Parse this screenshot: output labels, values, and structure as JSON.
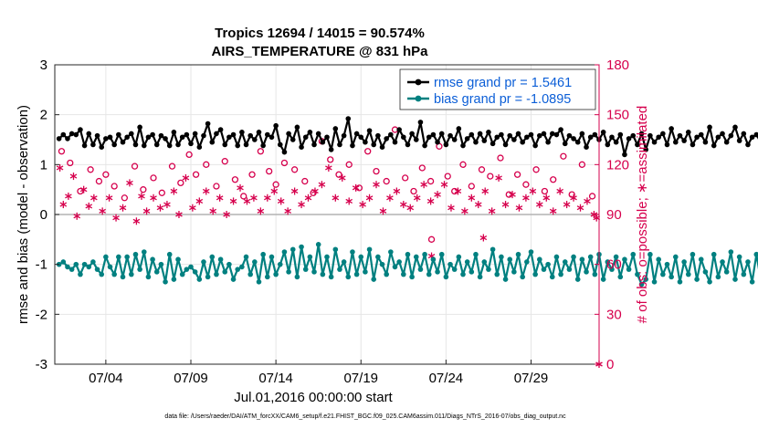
{
  "chart_data": {
    "type": "line",
    "title": "Tropics 12694 / 14015 = 90.574%",
    "subtitle": "AIRS_TEMPERATURE @ 831 hPa",
    "xlabel": "Jul.01,2016 00:00:00 start",
    "ylabel": "rmse and bias (model - observation)",
    "y2label": "# of obs: o=possible; ∗=assimilated",
    "footnote": "data file: /Users/raeder/DAI/ATM_forcXX/CAM6_setup/f.e21.FHIST_BGC.f09_025.CAM6assim.011/Diags_NTrS_2016-07/obs_diag_output.nc",
    "xlim": [
      1,
      33
    ],
    "ylim": [
      -3,
      3
    ],
    "y2lim": [
      0,
      180
    ],
    "grid": true,
    "legend_placement": "top-right",
    "x_ticks": [
      {
        "value": 4,
        "label": "07/04"
      },
      {
        "value": 9,
        "label": "07/09"
      },
      {
        "value": 14,
        "label": "07/14"
      },
      {
        "value": 19,
        "label": "07/19"
      },
      {
        "value": 24,
        "label": "07/24"
      },
      {
        "value": 29,
        "label": "07/29"
      }
    ],
    "y_ticks": [
      -3,
      -2,
      -1,
      0,
      1,
      2,
      3
    ],
    "y2_ticks": [
      0,
      30,
      60,
      90,
      120,
      150,
      180
    ],
    "series": [
      {
        "name": "rmse grand pr = 1.5461",
        "color": "#000000",
        "marker": "filled-circle",
        "axis": "left",
        "x_start": 1.25,
        "x_step": 0.25,
        "values": [
          1.52,
          1.6,
          1.52,
          1.62,
          1.6,
          1.7,
          1.38,
          1.62,
          1.4,
          1.58,
          1.35,
          1.52,
          1.55,
          1.4,
          1.6,
          1.45,
          1.55,
          1.62,
          1.4,
          1.75,
          1.38,
          1.55,
          1.6,
          1.4,
          1.58,
          1.52,
          1.38,
          1.65,
          1.4,
          1.55,
          1.6,
          1.42,
          1.62,
          1.35,
          1.58,
          1.82,
          1.45,
          1.62,
          1.7,
          1.4,
          1.55,
          1.6,
          1.38,
          1.65,
          1.4,
          1.58,
          1.5,
          1.65,
          1.38,
          1.6,
          1.55,
          1.78,
          1.4,
          1.25,
          1.62,
          1.5,
          1.75,
          1.35,
          1.55,
          1.65,
          1.4,
          1.62,
          1.45,
          1.55,
          1.3,
          1.72,
          1.4,
          1.58,
          1.92,
          1.38,
          1.62,
          1.55,
          1.45,
          1.68,
          1.4,
          1.58,
          1.35,
          1.52,
          1.6,
          1.45,
          1.7,
          1.55,
          1.4,
          1.62,
          1.5,
          1.85,
          1.38,
          1.55,
          1.6,
          1.45,
          1.62,
          1.4,
          1.58,
          1.5,
          1.72,
          1.38,
          1.52,
          1.6,
          1.45,
          1.62,
          1.48,
          1.65,
          1.42,
          1.55,
          1.6,
          1.4,
          1.58,
          1.5,
          1.62,
          1.45,
          1.55,
          1.6,
          1.38,
          1.58,
          1.62,
          1.45,
          1.62,
          1.6,
          1.7,
          1.42,
          1.58,
          1.52,
          1.45,
          1.62,
          1.35,
          1.55,
          1.6,
          1.5,
          1.65,
          1.4,
          1.55,
          1.45,
          1.6,
          1.2,
          1.52,
          1.58,
          1.4,
          1.62,
          1.3,
          1.58,
          1.45,
          1.55,
          1.62,
          1.4,
          1.72,
          1.45,
          1.58,
          1.48,
          1.65,
          1.4,
          1.55,
          1.6,
          1.45,
          1.75,
          1.38,
          1.55,
          1.62,
          1.45,
          1.58,
          1.75,
          1.48,
          1.62,
          1.4,
          1.55,
          1.6,
          1.45,
          1.62,
          1.42,
          1.72,
          1.5,
          1.45,
          1.5,
          1.42,
          1.6,
          1.48,
          1.68,
          1.55,
          1.62,
          1.45,
          1.55,
          1.6,
          1.45,
          1.7,
          1.42,
          1.5,
          1.6,
          1.45,
          1.65,
          1.42,
          1.55,
          1.6,
          1.45,
          1.75,
          1.48,
          1.55,
          1.45,
          1.62,
          1.4,
          1.72,
          1.45,
          1.55,
          1.65,
          1.45,
          1.72,
          1.48,
          1.62,
          1.48,
          1.5,
          1.52
        ]
      },
      {
        "name": "bias grand pr = -1.0895",
        "color": "#008080",
        "marker": "filled-circle",
        "axis": "left",
        "x_start": 1.25,
        "x_step": 0.25,
        "values": [
          -1.0,
          -0.95,
          -1.05,
          -1.1,
          -1.0,
          -1.2,
          -1.0,
          -1.05,
          -0.95,
          -1.1,
          -1.2,
          -0.85,
          -1.05,
          -1.2,
          -0.85,
          -1.25,
          -0.85,
          -1.2,
          -0.8,
          -1.1,
          -0.75,
          -1.25,
          -0.9,
          -1.15,
          -1.0,
          -1.35,
          -0.8,
          -1.3,
          -0.9,
          -1.2,
          -1.1,
          -1.05,
          -1.15,
          -1.3,
          -0.95,
          -1.25,
          -0.85,
          -1.2,
          -0.9,
          -1.15,
          -1.0,
          -1.3,
          -1.1,
          -1.05,
          -0.85,
          -1.2,
          -0.95,
          -1.35,
          -0.8,
          -1.25,
          -0.85,
          -1.2,
          -1.0,
          -0.75,
          -1.15,
          -0.7,
          -1.25,
          -0.65,
          -1.1,
          -0.85,
          -1.15,
          -0.6,
          -1.2,
          -0.85,
          -1.25,
          -0.7,
          -1.1,
          -0.95,
          -1.25,
          -0.75,
          -1.2,
          -0.85,
          -1.15,
          -0.7,
          -1.3,
          -0.85,
          -1.0,
          -1.2,
          -0.75,
          -1.05,
          -0.95,
          -1.2,
          -0.8,
          -1.25,
          -0.85,
          -1.1,
          -0.8,
          -1.2,
          -0.9,
          -1.15,
          -0.8,
          -1.25,
          -1.0,
          -1.1,
          -0.85,
          -1.2,
          -0.95,
          -1.15,
          -0.8,
          -1.25,
          -0.95,
          -1.1,
          -0.7,
          -1.2,
          -0.85,
          -1.3,
          -0.9,
          -1.15,
          -0.8,
          -1.25,
          -0.95,
          -0.75,
          -1.2,
          -0.9,
          -1.1,
          -1.0,
          -1.25,
          -0.85,
          -1.2,
          -0.95,
          -1.1,
          -0.85,
          -1.3,
          -0.9,
          -1.15,
          -0.85,
          -1.2,
          -0.8,
          -1.3,
          -0.95,
          -1.1,
          -0.85,
          -1.25,
          -0.9,
          -1.1,
          -0.8,
          -1.2,
          -1.4,
          -1.3,
          -0.8,
          -1.35,
          -0.9,
          -1.2,
          -1.0,
          -1.25,
          -0.85,
          -1.35,
          -0.95,
          -1.2,
          -0.8,
          -1.3,
          -0.9,
          -1.15,
          -1.35,
          -0.8,
          -1.25,
          -0.95,
          -1.15,
          -0.75,
          -1.3,
          -0.85,
          -1.2,
          -0.95,
          -1.35,
          -0.8,
          -1.3,
          -0.9,
          -1.2,
          -0.85,
          -1.15,
          -0.8,
          -1.25,
          -0.9,
          -1.1,
          -0.85,
          -1.3,
          -0.9,
          -1.15,
          -0.75,
          -1.25,
          -0.85,
          -1.2,
          -0.9,
          -1.3,
          -0.8,
          -1.15,
          -0.85,
          -1.25,
          -0.95,
          -1.1,
          -0.8,
          -1.3,
          -0.85,
          -1.2,
          -0.9,
          -1.25,
          -0.8,
          -1.2,
          -0.9,
          -1.3,
          -0.85,
          -1.1,
          -0.8,
          -1.25,
          -0.85,
          -1.15,
          -0.8
        ]
      },
      {
        "name": "possible",
        "color": "#d6004d",
        "marker": "open-circle",
        "axis": "right",
        "points": [
          [
            1.4,
            128
          ],
          [
            1.9,
            121
          ],
          [
            2.5,
            104
          ],
          [
            3.1,
            117
          ],
          [
            3.6,
            110
          ],
          [
            4.0,
            114
          ],
          [
            4.5,
            107
          ],
          [
            5.1,
            100
          ],
          [
            5.7,
            119
          ],
          [
            6.2,
            105
          ],
          [
            6.8,
            112
          ],
          [
            7.3,
            103
          ],
          [
            7.9,
            119
          ],
          [
            8.4,
            109
          ],
          [
            8.9,
            126
          ],
          [
            9.3,
            114
          ],
          [
            9.9,
            120
          ],
          [
            10.5,
            107
          ],
          [
            11.0,
            122
          ],
          [
            11.6,
            111
          ],
          [
            12.1,
            101
          ],
          [
            12.6,
            114
          ],
          [
            13.1,
            128
          ],
          [
            13.6,
            116
          ],
          [
            14.0,
            108
          ],
          [
            14.5,
            121
          ],
          [
            15.1,
            117
          ],
          [
            15.7,
            110
          ],
          [
            16.2,
            103
          ],
          [
            16.7,
            134
          ],
          [
            17.2,
            123
          ],
          [
            17.7,
            114
          ],
          [
            18.3,
            120
          ],
          [
            18.9,
            106
          ],
          [
            19.4,
            128
          ],
          [
            19.9,
            116
          ],
          [
            20.5,
            110
          ],
          [
            21.0,
            141
          ],
          [
            21.6,
            112
          ],
          [
            22.1,
            104
          ],
          [
            22.6,
            118
          ],
          [
            23.1,
            110
          ],
          [
            23.6,
            131
          ],
          [
            24.1,
            113
          ],
          [
            24.5,
            104
          ],
          [
            25.0,
            120
          ],
          [
            25.5,
            107
          ],
          [
            26.1,
            117
          ],
          [
            26.6,
            113
          ],
          [
            27.2,
            124
          ],
          [
            27.7,
            102
          ],
          [
            28.2,
            114
          ],
          [
            28.7,
            108
          ],
          [
            29.3,
            117
          ],
          [
            29.8,
            104
          ],
          [
            30.3,
            111
          ],
          [
            30.9,
            125
          ],
          [
            31.4,
            102
          ],
          [
            32.0,
            120
          ],
          [
            32.6,
            101
          ],
          [
            23.15,
            75
          ]
        ]
      },
      {
        "name": "assimilated",
        "color": "#d6004d",
        "marker": "asterisk",
        "axis": "right",
        "points": [
          [
            1.3,
            118
          ],
          [
            1.5,
            96
          ],
          [
            1.8,
            101
          ],
          [
            2.1,
            113
          ],
          [
            2.3,
            89
          ],
          [
            2.7,
            105
          ],
          [
            3.0,
            95
          ],
          [
            3.3,
            100
          ],
          [
            3.8,
            92
          ],
          [
            4.2,
            100
          ],
          [
            4.6,
            88
          ],
          [
            5.0,
            94
          ],
          [
            5.4,
            109
          ],
          [
            5.8,
            86
          ],
          [
            6.1,
            101
          ],
          [
            6.4,
            92
          ],
          [
            6.8,
            100
          ],
          [
            7.2,
            94
          ],
          [
            7.6,
            96
          ],
          [
            8.0,
            104
          ],
          [
            8.3,
            90
          ],
          [
            8.7,
            112
          ],
          [
            9.1,
            94
          ],
          [
            9.5,
            98
          ],
          [
            9.9,
            104
          ],
          [
            10.3,
            92
          ],
          [
            10.7,
            100
          ],
          [
            11.1,
            90
          ],
          [
            11.5,
            98
          ],
          [
            11.9,
            106
          ],
          [
            12.3,
            98
          ],
          [
            12.7,
            100
          ],
          [
            13.1,
            92
          ],
          [
            13.5,
            100
          ],
          [
            13.9,
            104
          ],
          [
            14.3,
            98
          ],
          [
            14.7,
            92
          ],
          [
            15.1,
            104
          ],
          [
            15.5,
            96
          ],
          [
            15.9,
            100
          ],
          [
            16.3,
            104
          ],
          [
            16.7,
            108
          ],
          [
            17.1,
            118
          ],
          [
            17.5,
            100
          ],
          [
            17.9,
            112
          ],
          [
            18.3,
            98
          ],
          [
            18.7,
            106
          ],
          [
            19.1,
            96
          ],
          [
            19.5,
            100
          ],
          [
            19.9,
            108
          ],
          [
            20.3,
            92
          ],
          [
            20.7,
            100
          ],
          [
            21.1,
            104
          ],
          [
            21.5,
            96
          ],
          [
            21.9,
            94
          ],
          [
            22.3,
            100
          ],
          [
            22.7,
            108
          ],
          [
            23.15,
            65
          ],
          [
            23.1,
            98
          ],
          [
            23.5,
            102
          ],
          [
            23.9,
            108
          ],
          [
            24.3,
            94
          ],
          [
            24.7,
            104
          ],
          [
            25.1,
            92
          ],
          [
            25.5,
            100
          ],
          [
            25.9,
            96
          ],
          [
            26.3,
            104
          ],
          [
            26.7,
            92
          ],
          [
            27.1,
            112
          ],
          [
            27.5,
            96
          ],
          [
            27.9,
            102
          ],
          [
            28.3,
            94
          ],
          [
            28.7,
            100
          ],
          [
            29.1,
            104
          ],
          [
            29.5,
            96
          ],
          [
            29.9,
            100
          ],
          [
            30.3,
            92
          ],
          [
            30.7,
            104
          ],
          [
            31.1,
            96
          ],
          [
            31.5,
            100
          ],
          [
            31.9,
            94
          ],
          [
            32.3,
            98
          ],
          [
            32.7,
            90
          ],
          [
            32.85,
            88
          ],
          [
            26.2,
            76
          ],
          [
            33,
            0
          ]
        ]
      }
    ]
  }
}
